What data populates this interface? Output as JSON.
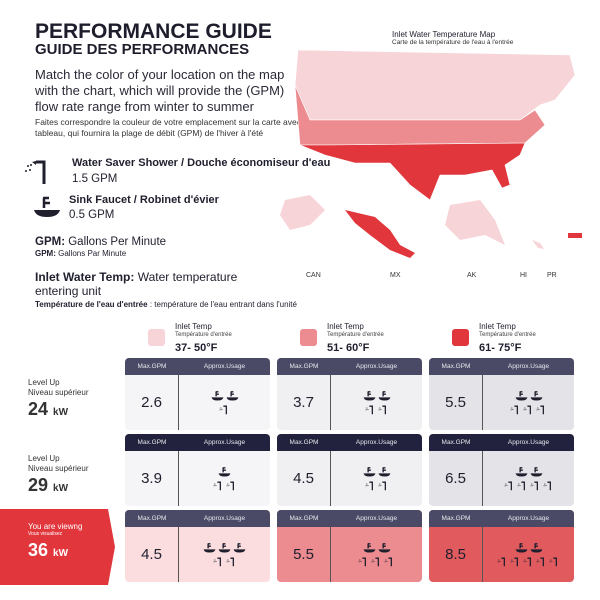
{
  "title": "PERFORMANCE GUIDE",
  "subtitle": "GUIDE DES PERFORMANCES",
  "intro": "Match the color of your location on the map with the chart, which will provide the (GPM) flow rate range from winter to summer",
  "intro_fr": "Faites correspondre la couleur de votre emplacement sur la carte avec le tableau, qui fournira la plage de débit (GPM) de l'hiver à l'été",
  "shower": {
    "title": "Water Saver Shower / Douche économiseur d'eau",
    "value": "1.5 GPM"
  },
  "faucet": {
    "title": "Sink Faucet / Robinet d'évier",
    "value": "0.5 GPM"
  },
  "gpm_def": {
    "term": "GPM:",
    "text": "Gallons Per Minute",
    "fr_term": "GPM:",
    "fr_text": "Gallons Par Minute"
  },
  "inlet_def": {
    "term": "Inlet Water Temp:",
    "text": "Water temperature entering unit",
    "fr_term": "Température de l'eau d'entrée",
    "fr_text": ": température de l'eau entrant dans l'unité"
  },
  "map": {
    "title": "Inlet Water Temperature Map",
    "subtitle": "Carte de la température de l'eau à l'entrée",
    "labels": [
      "CAN",
      "MX",
      "AK",
      "HI",
      "PR"
    ]
  },
  "colors": {
    "light": "#f7d4d8",
    "mid": "#ec8c90",
    "hot": "#e0363c",
    "header": "#4a4a66",
    "dark": "#22223e"
  },
  "legend": [
    {
      "label": "Inlet Temp",
      "fr": "Température d'entrée",
      "range": "37- 50°F"
    },
    {
      "label": "Inlet Temp",
      "fr": "Température d'entrée",
      "range": "51- 60°F"
    },
    {
      "label": "Inlet Temp",
      "fr": "Température d'entrée",
      "range": "61- 75°F"
    }
  ],
  "headers": {
    "gpm": "Max.GPM",
    "usage": "Approx.Usage"
  },
  "levels": [
    {
      "label": "Level Up",
      "fr": "Niveau supérieur",
      "kw": "24",
      "unit": "kW",
      "cells": [
        {
          "gpm": "2.6",
          "faucets": 2,
          "showers": 1
        },
        {
          "gpm": "3.7",
          "faucets": 2,
          "showers": 2
        },
        {
          "gpm": "5.5",
          "faucets": 2,
          "showers": 3
        }
      ]
    },
    {
      "label": "Level Up",
      "fr": "Niveau supérieur",
      "kw": "29",
      "unit": "kW",
      "cells": [
        {
          "gpm": "3.9",
          "faucets": 1,
          "showers": 2
        },
        {
          "gpm": "4.5",
          "faucets": 2,
          "showers": 2
        },
        {
          "gpm": "6.5",
          "faucets": 2,
          "showers": 4
        }
      ]
    },
    {
      "label": "You are viewng",
      "fr": "Vous visualisez",
      "kw": "36",
      "unit": "kW",
      "cells": [
        {
          "gpm": "4.5",
          "faucets": 3,
          "showers": 2
        },
        {
          "gpm": "5.5",
          "faucets": 2,
          "showers": 3
        },
        {
          "gpm": "8.5",
          "faucets": 2,
          "showers": 5
        }
      ]
    }
  ]
}
